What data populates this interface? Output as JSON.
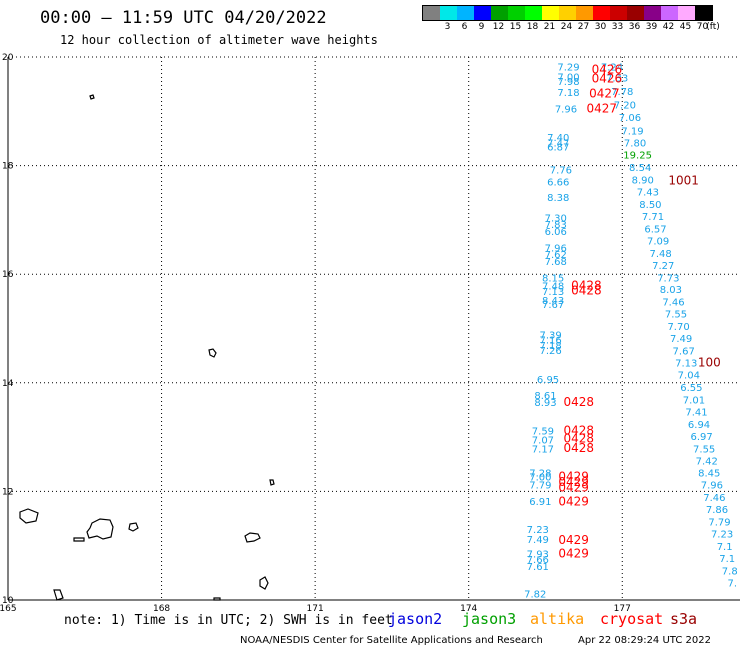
{
  "title": "00:00 – 11:59 UTC 04/20/2022",
  "subtitle": "12 hour collection of altimeter wave heights",
  "colorbar": {
    "unit": "(ft)",
    "bins": [
      {
        "label": "",
        "color": "#808080"
      },
      {
        "label": "3",
        "color": "#00e8e8"
      },
      {
        "label": "6",
        "color": "#00b4ff"
      },
      {
        "label": "9",
        "color": "#0000ff"
      },
      {
        "label": "12",
        "color": "#00a000"
      },
      {
        "label": "15",
        "color": "#00d000"
      },
      {
        "label": "18",
        "color": "#00ff00"
      },
      {
        "label": "21",
        "color": "#ffff00"
      },
      {
        "label": "24",
        "color": "#ffd000"
      },
      {
        "label": "27",
        "color": "#ff9900"
      },
      {
        "label": "30",
        "color": "#ff0000"
      },
      {
        "label": "33",
        "color": "#cc0000"
      },
      {
        "label": "36",
        "color": "#990000"
      },
      {
        "label": "39",
        "color": "#880088"
      },
      {
        "label": "42",
        "color": "#cc66ff"
      },
      {
        "label": "45",
        "color": "#ffaaff"
      },
      {
        "label": "70",
        "color": "#000000"
      }
    ]
  },
  "axes": {
    "lon_ticks": [
      {
        "value": 165,
        "label": "165"
      },
      {
        "value": 168,
        "label": "168"
      },
      {
        "value": 171,
        "label": "171"
      },
      {
        "value": 174,
        "label": "174"
      },
      {
        "value": 177,
        "label": "177"
      }
    ],
    "lat_ticks": [
      {
        "value": 10,
        "label": "10"
      },
      {
        "value": 12,
        "label": "12"
      },
      {
        "value": 14,
        "label": "14"
      },
      {
        "value": 16,
        "label": "16"
      },
      {
        "value": 18,
        "label": "18"
      },
      {
        "value": 20,
        "label": "20"
      }
    ],
    "lon_range": [
      165,
      179.3
    ],
    "lat_range": [
      10,
      20
    ]
  },
  "observations": [
    {
      "lon": 175.95,
      "lat": 19.75,
      "v": "7.29",
      "color": "#1aa3e8"
    },
    {
      "lon": 175.95,
      "lat": 19.57,
      "v": "7.00",
      "color": "#1aa3e8"
    },
    {
      "lon": 175.95,
      "lat": 19.48,
      "v": "7.98",
      "color": "#1aa3e8"
    },
    {
      "lon": 175.95,
      "lat": 19.28,
      "v": "7.18",
      "color": "#1aa3e8"
    },
    {
      "lon": 175.9,
      "lat": 18.98,
      "v": "7.96",
      "color": "#1aa3e8"
    },
    {
      "lon": 176.8,
      "lat": 19.75,
      "v": "7.24",
      "color": "#1aa3e8"
    },
    {
      "lon": 176.9,
      "lat": 19.55,
      "v": "7.33",
      "color": "#1aa3e8"
    },
    {
      "lon": 177.0,
      "lat": 19.3,
      "v": "7.78",
      "color": "#1aa3e8"
    },
    {
      "lon": 177.05,
      "lat": 19.05,
      "v": "7.20",
      "color": "#1aa3e8"
    },
    {
      "lon": 177.15,
      "lat": 18.82,
      "v": "7.06",
      "color": "#1aa3e8"
    },
    {
      "lon": 177.2,
      "lat": 18.57,
      "v": "7.19",
      "color": "#1aa3e8"
    },
    {
      "lon": 177.25,
      "lat": 18.35,
      "v": "7.80",
      "color": "#1aa3e8"
    },
    {
      "lon": 177.3,
      "lat": 18.13,
      "v": "19.25",
      "color": "#00a000"
    },
    {
      "lon": 177.35,
      "lat": 17.9,
      "v": "8.54",
      "color": "#1aa3e8"
    },
    {
      "lon": 177.4,
      "lat": 17.67,
      "v": "8.90",
      "color": "#1aa3e8"
    },
    {
      "lon": 177.5,
      "lat": 17.45,
      "v": "7.43",
      "color": "#1aa3e8"
    },
    {
      "lon": 177.55,
      "lat": 17.22,
      "v": "8.50",
      "color": "#1aa3e8"
    },
    {
      "lon": 177.6,
      "lat": 17.0,
      "v": "7.71",
      "color": "#1aa3e8"
    },
    {
      "lon": 177.65,
      "lat": 16.77,
      "v": "6.57",
      "color": "#1aa3e8"
    },
    {
      "lon": 177.7,
      "lat": 16.55,
      "v": "7.09",
      "color": "#1aa3e8"
    },
    {
      "lon": 177.75,
      "lat": 16.32,
      "v": "7.48",
      "color": "#1aa3e8"
    },
    {
      "lon": 177.8,
      "lat": 16.1,
      "v": "7.27",
      "color": "#1aa3e8"
    },
    {
      "lon": 177.9,
      "lat": 15.87,
      "v": "7.73",
      "color": "#1aa3e8"
    },
    {
      "lon": 177.95,
      "lat": 15.65,
      "v": "8.03",
      "color": "#1aa3e8"
    },
    {
      "lon": 178.0,
      "lat": 15.42,
      "v": "7.46",
      "color": "#1aa3e8"
    },
    {
      "lon": 178.05,
      "lat": 15.2,
      "v": "7.55",
      "color": "#1aa3e8"
    },
    {
      "lon": 178.1,
      "lat": 14.97,
      "v": "7.70",
      "color": "#1aa3e8"
    },
    {
      "lon": 178.15,
      "lat": 14.75,
      "v": "7.49",
      "color": "#1aa3e8"
    },
    {
      "lon": 178.2,
      "lat": 14.52,
      "v": "7.67",
      "color": "#1aa3e8"
    },
    {
      "lon": 178.25,
      "lat": 14.3,
      "v": "7.13",
      "color": "#1aa3e8"
    },
    {
      "lon": 178.3,
      "lat": 14.08,
      "v": "7.04",
      "color": "#1aa3e8"
    },
    {
      "lon": 178.35,
      "lat": 13.85,
      "v": "6.55",
      "color": "#1aa3e8"
    },
    {
      "lon": 178.4,
      "lat": 13.62,
      "v": "7.01",
      "color": "#1aa3e8"
    },
    {
      "lon": 178.45,
      "lat": 13.4,
      "v": "7.41",
      "color": "#1aa3e8"
    },
    {
      "lon": 178.5,
      "lat": 13.17,
      "v": "6.94",
      "color": "#1aa3e8"
    },
    {
      "lon": 178.55,
      "lat": 12.95,
      "v": "6.97",
      "color": "#1aa3e8"
    },
    {
      "lon": 178.6,
      "lat": 12.72,
      "v": "7.55",
      "color": "#1aa3e8"
    },
    {
      "lon": 178.65,
      "lat": 12.5,
      "v": "7.42",
      "color": "#1aa3e8"
    },
    {
      "lon": 178.7,
      "lat": 12.27,
      "v": "8.45",
      "color": "#1aa3e8"
    },
    {
      "lon": 178.75,
      "lat": 12.05,
      "v": "7.96",
      "color": "#1aa3e8"
    },
    {
      "lon": 178.8,
      "lat": 11.82,
      "v": "7.46",
      "color": "#1aa3e8"
    },
    {
      "lon": 178.85,
      "lat": 11.6,
      "v": "7.86",
      "color": "#1aa3e8"
    },
    {
      "lon": 178.9,
      "lat": 11.37,
      "v": "7.79",
      "color": "#1aa3e8"
    },
    {
      "lon": 178.95,
      "lat": 11.15,
      "v": "7.23",
      "color": "#1aa3e8"
    },
    {
      "lon": 179.0,
      "lat": 10.92,
      "v": "7.1",
      "color": "#1aa3e8"
    },
    {
      "lon": 179.05,
      "lat": 10.7,
      "v": "7.1",
      "color": "#1aa3e8"
    },
    {
      "lon": 179.1,
      "lat": 10.47,
      "v": "7.8",
      "color": "#1aa3e8"
    },
    {
      "lon": 179.15,
      "lat": 10.25,
      "v": "7.",
      "color": "#1aa3e8"
    },
    {
      "lon": 175.75,
      "lat": 18.45,
      "v": "7.40",
      "color": "#1aa3e8"
    },
    {
      "lon": 175.75,
      "lat": 18.35,
      "v": "7.47",
      "color": "#1aa3e8"
    },
    {
      "lon": 175.75,
      "lat": 18.28,
      "v": "6.87",
      "color": "#1aa3e8"
    },
    {
      "lon": 175.8,
      "lat": 17.85,
      "v": "7.76",
      "color": "#1aa3e8"
    },
    {
      "lon": 175.75,
      "lat": 17.63,
      "v": "6.66",
      "color": "#1aa3e8"
    },
    {
      "lon": 175.75,
      "lat": 17.35,
      "v": "8.38",
      "color": "#1aa3e8"
    },
    {
      "lon": 175.7,
      "lat": 16.97,
      "v": "7.30",
      "color": "#1aa3e8"
    },
    {
      "lon": 175.7,
      "lat": 16.85,
      "v": "7.83",
      "color": "#1aa3e8"
    },
    {
      "lon": 175.7,
      "lat": 16.72,
      "v": "6.06",
      "color": "#1aa3e8"
    },
    {
      "lon": 175.7,
      "lat": 16.42,
      "v": "7.96",
      "color": "#1aa3e8"
    },
    {
      "lon": 175.7,
      "lat": 16.3,
      "v": "7.62",
      "color": "#1aa3e8"
    },
    {
      "lon": 175.7,
      "lat": 16.17,
      "v": "7.68",
      "color": "#1aa3e8"
    },
    {
      "lon": 175.65,
      "lat": 15.87,
      "v": "8.15",
      "color": "#1aa3e8"
    },
    {
      "lon": 175.65,
      "lat": 15.72,
      "v": "7.48",
      "color": "#1aa3e8"
    },
    {
      "lon": 175.65,
      "lat": 15.62,
      "v": "7.13",
      "color": "#1aa3e8"
    },
    {
      "lon": 175.65,
      "lat": 15.45,
      "v": "8.43",
      "color": "#1aa3e8"
    },
    {
      "lon": 175.65,
      "lat": 15.38,
      "v": "7.67",
      "color": "#1aa3e8"
    },
    {
      "lon": 175.6,
      "lat": 14.82,
      "v": "7.39",
      "color": "#1aa3e8"
    },
    {
      "lon": 175.6,
      "lat": 14.72,
      "v": "7.16",
      "color": "#1aa3e8"
    },
    {
      "lon": 175.6,
      "lat": 14.62,
      "v": "7.18",
      "color": "#1aa3e8"
    },
    {
      "lon": 175.6,
      "lat": 14.53,
      "v": "7.26",
      "color": "#1aa3e8"
    },
    {
      "lon": 175.55,
      "lat": 14.0,
      "v": "6.95",
      "color": "#1aa3e8"
    },
    {
      "lon": 175.5,
      "lat": 13.7,
      "v": "8.61",
      "color": "#1aa3e8"
    },
    {
      "lon": 175.5,
      "lat": 13.57,
      "v": "8.93",
      "color": "#1aa3e8"
    },
    {
      "lon": 175.45,
      "lat": 13.05,
      "v": "7.59",
      "color": "#1aa3e8"
    },
    {
      "lon": 175.45,
      "lat": 12.88,
      "v": "7.07",
      "color": "#1aa3e8"
    },
    {
      "lon": 175.45,
      "lat": 12.72,
      "v": "7.17",
      "color": "#1aa3e8"
    },
    {
      "lon": 175.4,
      "lat": 12.27,
      "v": "7.28",
      "color": "#1aa3e8"
    },
    {
      "lon": 175.4,
      "lat": 12.2,
      "v": "7.00",
      "color": "#1aa3e8"
    },
    {
      "lon": 175.4,
      "lat": 12.05,
      "v": "7.79",
      "color": "#1aa3e8"
    },
    {
      "lon": 175.4,
      "lat": 11.75,
      "v": "6.91",
      "color": "#1aa3e8"
    },
    {
      "lon": 175.35,
      "lat": 11.23,
      "v": "7.23",
      "color": "#1aa3e8"
    },
    {
      "lon": 175.35,
      "lat": 11.05,
      "v": "7.49",
      "color": "#1aa3e8"
    },
    {
      "lon": 175.35,
      "lat": 10.78,
      "v": "7.93",
      "color": "#1aa3e8"
    },
    {
      "lon": 175.35,
      "lat": 10.68,
      "v": "7.66",
      "color": "#1aa3e8"
    },
    {
      "lon": 175.35,
      "lat": 10.55,
      "v": "7.61",
      "color": "#1aa3e8"
    },
    {
      "lon": 175.3,
      "lat": 10.05,
      "v": "7.82",
      "color": "#1aa3e8"
    }
  ],
  "time_tags": [
    {
      "lon": 176.7,
      "lat": 19.7,
      "v": "0426",
      "color": "#ff0000"
    },
    {
      "lon": 176.7,
      "lat": 19.53,
      "v": "0426",
      "color": "#ff0000"
    },
    {
      "lon": 176.65,
      "lat": 19.25,
      "v": "0427",
      "color": "#ff0000"
    },
    {
      "lon": 176.6,
      "lat": 18.98,
      "v": "0427",
      "color": "#ff0000"
    },
    {
      "lon": 178.2,
      "lat": 17.65,
      "v": "1001",
      "color": "#990000"
    },
    {
      "lon": 176.3,
      "lat": 15.72,
      "v": "0428",
      "color": "#ff0000"
    },
    {
      "lon": 176.3,
      "lat": 15.63,
      "v": "0428",
      "color": "#ff0000"
    },
    {
      "lon": 178.7,
      "lat": 14.3,
      "v": "100",
      "color": "#990000"
    },
    {
      "lon": 176.15,
      "lat": 13.57,
      "v": "0428",
      "color": "#ff0000"
    },
    {
      "lon": 176.15,
      "lat": 13.05,
      "v": "0428",
      "color": "#ff0000"
    },
    {
      "lon": 176.15,
      "lat": 12.9,
      "v": "0428",
      "color": "#ff0000"
    },
    {
      "lon": 176.15,
      "lat": 12.73,
      "v": "0428",
      "color": "#ff0000"
    },
    {
      "lon": 176.05,
      "lat": 12.2,
      "v": "0429",
      "color": "#ff0000"
    },
    {
      "lon": 176.05,
      "lat": 12.1,
      "v": "0429",
      "color": "#ff0000"
    },
    {
      "lon": 176.05,
      "lat": 12.0,
      "v": "0429",
      "color": "#ff0000"
    },
    {
      "lon": 176.05,
      "lat": 11.74,
      "v": "0429",
      "color": "#ff0000"
    },
    {
      "lon": 176.05,
      "lat": 11.03,
      "v": "0429",
      "color": "#ff0000"
    },
    {
      "lon": 176.05,
      "lat": 10.78,
      "v": "0429",
      "color": "#ff0000"
    }
  ],
  "footer": {
    "note": "note: 1) Time is in UTC; 2) SWH is in feet",
    "satellites": [
      {
        "name": "jason2",
        "color": "#0000dd"
      },
      {
        "name": "jason3",
        "color": "#00a000"
      },
      {
        "name": "altika",
        "color": "#ff9900"
      },
      {
        "name": "cryosat",
        "color": "#ff0000"
      },
      {
        "name": "s3a",
        "color": "#990000"
      }
    ],
    "credit": "NOAA/NESDIS Center for Satellite Applications and Research",
    "timestamp": "Apr 22 08:29:24 UTC 2022"
  }
}
